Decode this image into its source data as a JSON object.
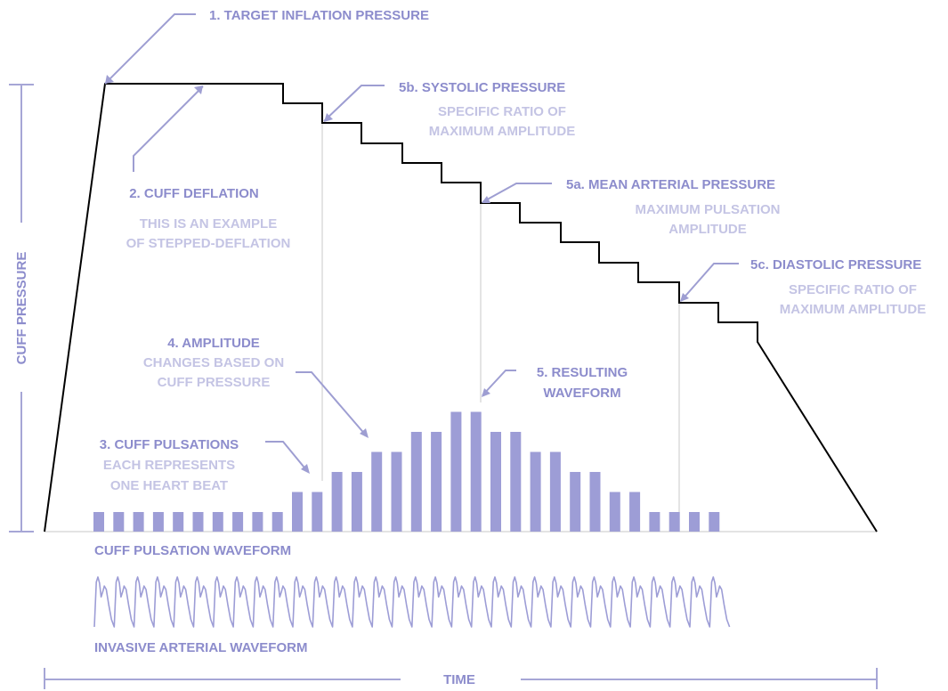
{
  "labels": {
    "target_inflation": "1. TARGET INFLATION PRESSURE",
    "cuff_deflation": "2. CUFF DEFLATION",
    "deflation_note_1": "THIS IS AN EXAMPLE",
    "deflation_note_2": "OF STEPPED-DEFLATION",
    "cuff_pulsations": "3. CUFF PULSATIONS",
    "pulsations_note_1": "EACH REPRESENTS",
    "pulsations_note_2": "ONE HEART BEAT",
    "amplitude": "4. AMPLITUDE",
    "amplitude_note_1": "CHANGES BASED ON",
    "amplitude_note_2": "CUFF PRESSURE",
    "resulting_1": "5. RESULTING",
    "resulting_2": "WAVEFORM",
    "systolic": "5b. SYSTOLIC PRESSURE",
    "systolic_note_1": "SPECIFIC RATIO OF",
    "systolic_note_2": "MAXIMUM AMPLITUDE",
    "mean_arterial": "5a. MEAN ARTERIAL PRESSURE",
    "mean_note_1": "MAXIMUM PULSATION",
    "mean_note_2": "AMPLITUDE",
    "diastolic": "5c. DIASTOLIC PRESSURE",
    "diastolic_note_1": "SPECIFIC RATIO OF",
    "diastolic_note_2": "MAXIMUM AMPLITUDE",
    "cuff_pulsation_waveform": "CUFF PULSATION WAVEFORM",
    "invasive_waveform": "INVASIVE ARTERIAL WAVEFORM",
    "y_axis": "CUFF PRESSURE",
    "x_axis": "TIME"
  },
  "colors": {
    "primary_text": "#8c8ccc",
    "secondary_text": "#c4c4e4",
    "bars": "#9d9dd6",
    "pressure_line": "#000000",
    "guide_lines": "#d2d2d2"
  },
  "pulsation_levels": [
    1,
    1,
    1,
    1,
    1,
    1,
    1,
    1,
    1,
    1,
    2,
    2,
    3,
    3,
    4,
    4,
    5,
    5,
    6,
    6,
    5,
    5,
    4,
    4,
    3,
    3,
    2,
    2,
    1,
    1,
    1,
    1
  ],
  "beat_count": 32
}
